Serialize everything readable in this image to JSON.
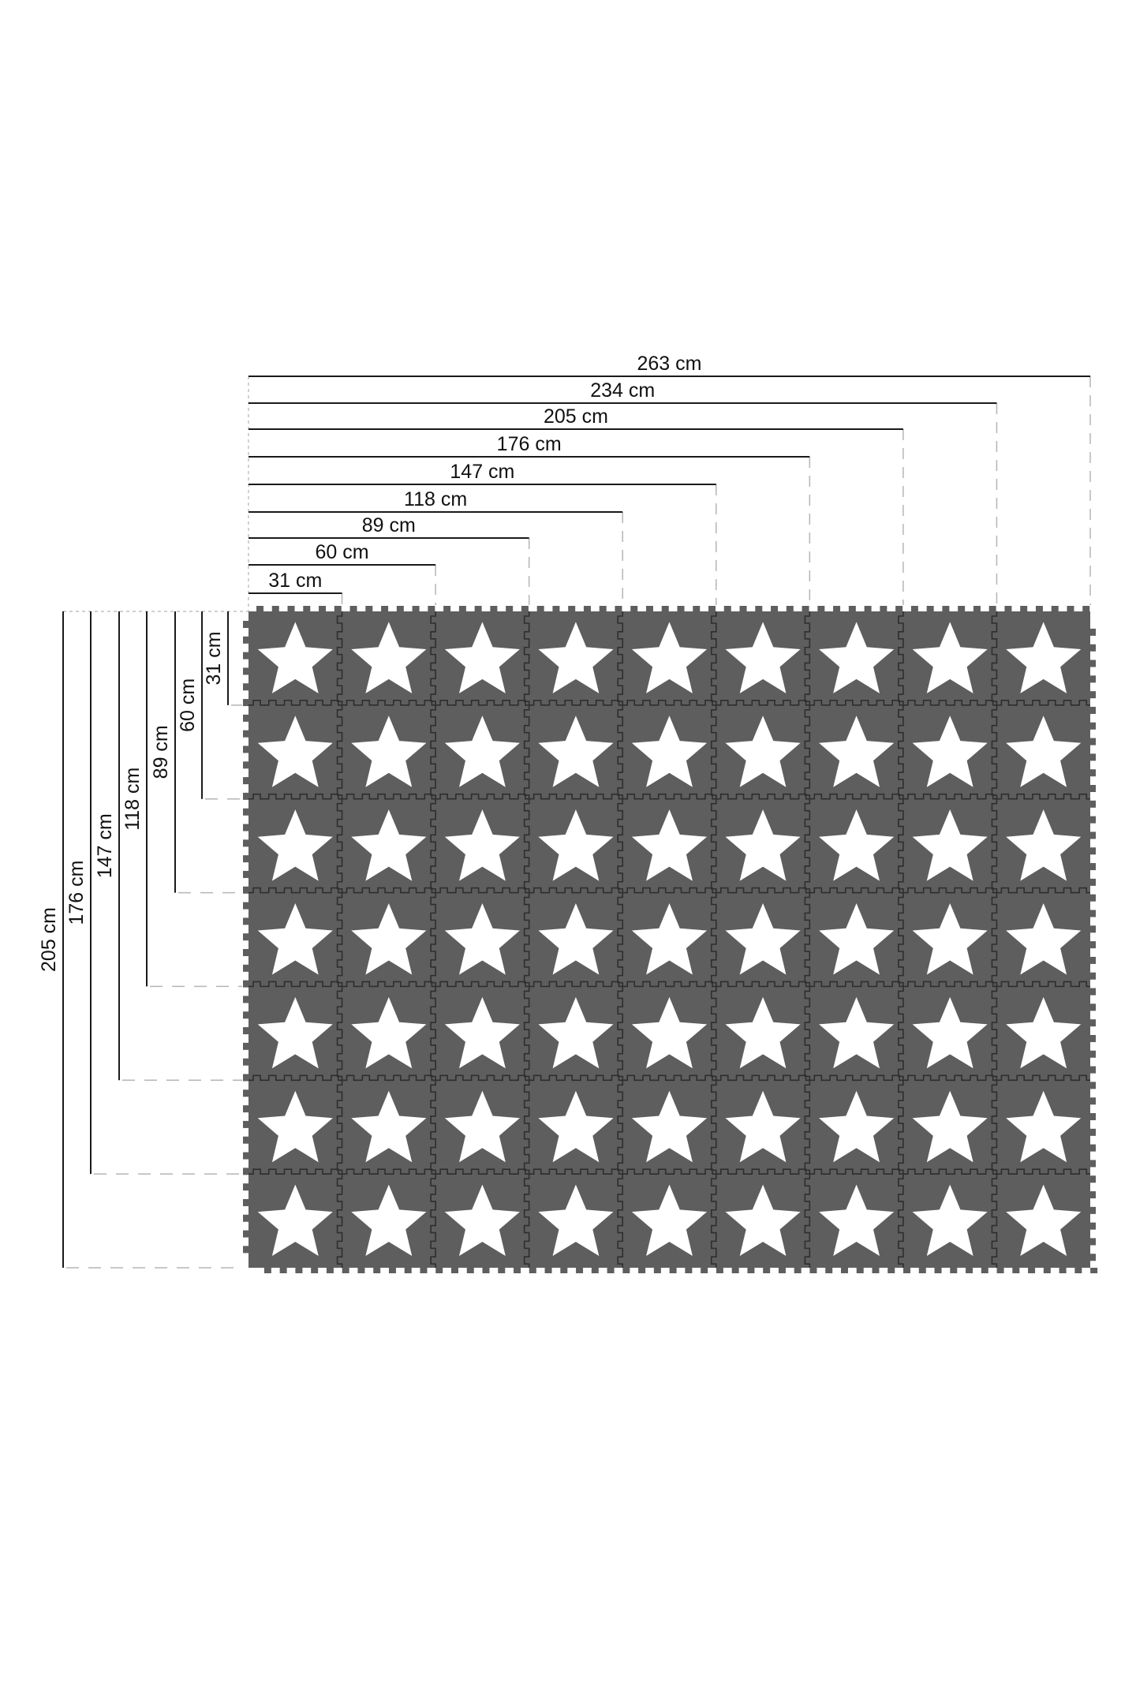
{
  "diagram": {
    "width_labels": [
      "31 cm",
      "60 cm",
      "89 cm",
      "118 cm",
      "147 cm",
      "176 cm",
      "205 cm",
      "234 cm",
      "263 cm"
    ],
    "height_labels": [
      "31 cm",
      "60 cm",
      "89 cm",
      "118 cm",
      "147 cm",
      "176 cm",
      "205 cm"
    ],
    "tile_motif": "white-star-icon",
    "colors": {
      "tile": "#5e5e5e",
      "seam": "#2e2e2e",
      "star": "#ffffff",
      "dimension_line": "#1a1a1a",
      "guide_line": "#b5b5b5"
    }
  }
}
